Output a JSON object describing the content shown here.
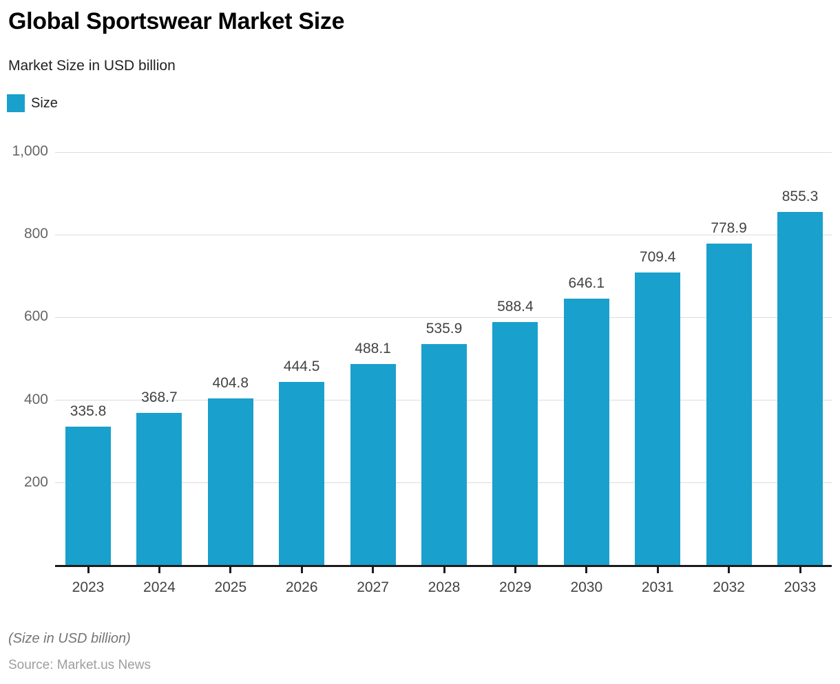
{
  "header": {
    "title": "Global Sportswear Market Size",
    "subtitle": "Market Size in USD billion"
  },
  "legend": {
    "items": [
      {
        "label": "Size",
        "color": "#19A0CC"
      }
    ]
  },
  "chart_data": {
    "type": "bar",
    "title": "Global Sportswear Market Size",
    "subtitle": "Market Size in USD billion",
    "categories": [
      "2023",
      "2024",
      "2025",
      "2026",
      "2027",
      "2028",
      "2029",
      "2030",
      "2031",
      "2032",
      "2033"
    ],
    "series": [
      {
        "name": "Size",
        "values": [
          335.8,
          368.7,
          404.8,
          444.5,
          488.1,
          535.9,
          588.4,
          646.1,
          709.4,
          778.9,
          855.3
        ]
      }
    ],
    "value_labels": [
      "335.8",
      "368.7",
      "404.8",
      "444.5",
      "488.1",
      "535.9",
      "588.4",
      "646.1",
      "709.4",
      "778.9",
      "855.3"
    ],
    "xlabel": "",
    "ylabel": "",
    "ylim": [
      0,
      1000
    ],
    "y_ticks": [
      {
        "value": 200,
        "label": "200"
      },
      {
        "value": 400,
        "label": "400"
      },
      {
        "value": 600,
        "label": "600"
      },
      {
        "value": 800,
        "label": "800"
      },
      {
        "value": 1000,
        "label": "1,000"
      }
    ],
    "grid": "horizontal",
    "legend_position": "top-left"
  },
  "footer": {
    "note": "(Size in USD billion)",
    "source": "Source: Market.us News"
  },
  "colors": {
    "bar": "#19A0CC",
    "gridline": "#dcdcdc",
    "axis_line": "#1a1a1a",
    "y_tick_text": "#666666",
    "x_tick_text": "#424242",
    "value_label_text": "#424242"
  }
}
